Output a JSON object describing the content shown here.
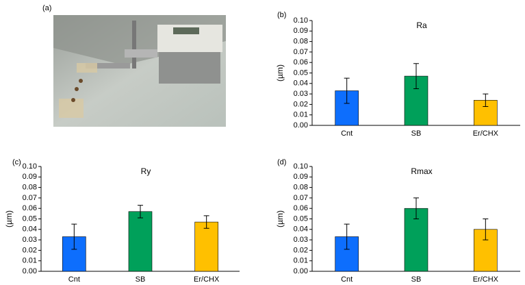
{
  "photo": {
    "label": "(a)"
  },
  "chart_data": [
    {
      "type": "bar",
      "panel": "(b)",
      "title": "Ra",
      "ylabel": "(µm)",
      "categories": [
        "Cnt",
        "SB",
        "Er/CHX"
      ],
      "series": [
        {
          "values": [
            0.033,
            0.047,
            0.024
          ],
          "errors": [
            0.012,
            0.012,
            0.006
          ],
          "colors": [
            "#0d6efd",
            "#00a05a",
            "#ffc000"
          ]
        }
      ],
      "ylim": [
        0,
        0.1
      ],
      "yticks": [
        {
          "value": 0,
          "label": "0.00"
        },
        {
          "value": 0.01,
          "label": "0.01"
        },
        {
          "value": 0.02,
          "label": "0.02"
        },
        {
          "value": 0.03,
          "label": "0.03"
        },
        {
          "value": 0.04,
          "label": "0.04"
        },
        {
          "value": 0.05,
          "label": "0.05"
        },
        {
          "value": 0.06,
          "label": "0.06"
        },
        {
          "value": 0.07,
          "label": "0.07"
        },
        {
          "value": 0.08,
          "label": "0.08"
        },
        {
          "value": 0.09,
          "label": "0.09"
        },
        {
          "value": 0.1,
          "label": "0.10"
        }
      ]
    },
    {
      "type": "bar",
      "panel": "(c)",
      "title": "Ry",
      "ylabel": "(µm)",
      "categories": [
        "Cnt",
        "SB",
        "Er/CHX"
      ],
      "series": [
        {
          "values": [
            0.033,
            0.057,
            0.047
          ],
          "errors": [
            0.012,
            0.006,
            0.006
          ],
          "colors": [
            "#0d6efd",
            "#00a05a",
            "#ffc000"
          ]
        }
      ],
      "ylim": [
        0,
        0.1
      ],
      "yticks": [
        {
          "value": 0,
          "label": "0.00"
        },
        {
          "value": 0.01,
          "label": "0.01"
        },
        {
          "value": 0.02,
          "label": "0.02"
        },
        {
          "value": 0.03,
          "label": "0.03"
        },
        {
          "value": 0.04,
          "label": "0.04"
        },
        {
          "value": 0.05,
          "label": "0.05"
        },
        {
          "value": 0.06,
          "label": "0.06"
        },
        {
          "value": 0.07,
          "label": "0.07"
        },
        {
          "value": 0.08,
          "label": "0.08"
        },
        {
          "value": 0.09,
          "label": "0.09"
        },
        {
          "value": 0.1,
          "label": "0.10"
        }
      ]
    },
    {
      "type": "bar",
      "panel": "(d)",
      "title": "Rmax",
      "ylabel": "(µm)",
      "categories": [
        "Cnt",
        "SB",
        "Er/CHX"
      ],
      "series": [
        {
          "values": [
            0.033,
            0.06,
            0.04
          ],
          "errors": [
            0.012,
            0.01,
            0.01
          ],
          "colors": [
            "#0d6efd",
            "#00a05a",
            "#ffc000"
          ]
        }
      ],
      "ylim": [
        0,
        0.1
      ],
      "yticks": [
        {
          "value": 0,
          "label": "0.00"
        },
        {
          "value": 0.01,
          "label": "0.01"
        },
        {
          "value": 0.02,
          "label": "0.02"
        },
        {
          "value": 0.03,
          "label": "0.03"
        },
        {
          "value": 0.04,
          "label": "0.04"
        },
        {
          "value": 0.05,
          "label": "0.05"
        },
        {
          "value": 0.06,
          "label": "0.06"
        },
        {
          "value": 0.07,
          "label": "0.07"
        },
        {
          "value": 0.08,
          "label": "0.08"
        },
        {
          "value": 0.09,
          "label": "0.09"
        },
        {
          "value": 0.1,
          "label": "0.10"
        }
      ]
    }
  ]
}
